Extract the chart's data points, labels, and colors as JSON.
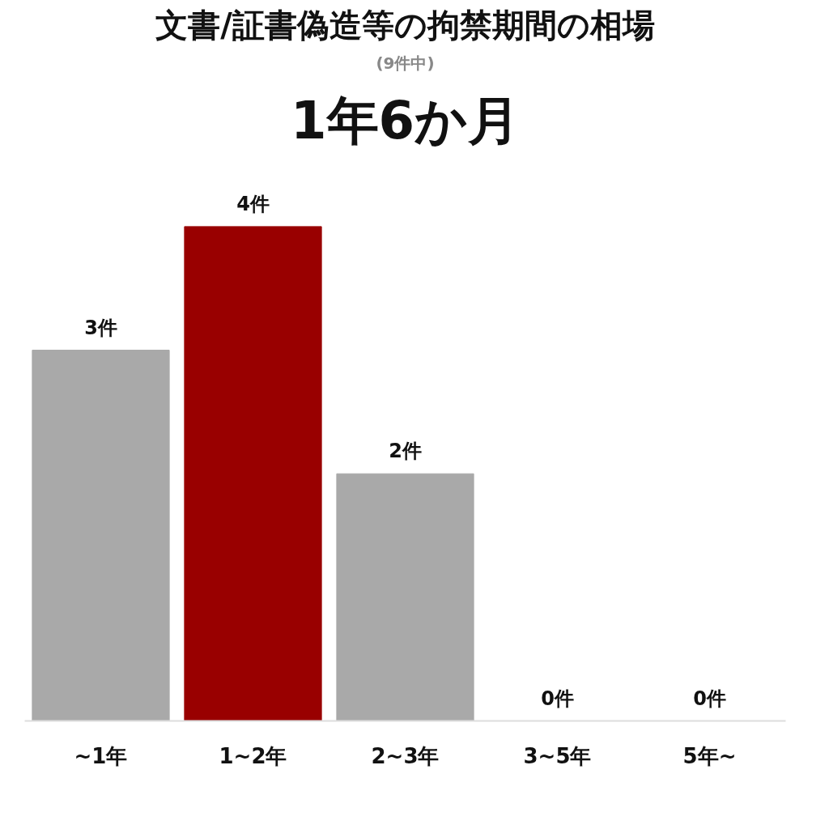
{
  "chart_data": {
    "type": "bar",
    "title": "文書/証書偽造等の拘禁期間の相場",
    "subtitle": "(9件中)",
    "annotations": [
      "1年6か月"
    ],
    "categories": [
      "~1年",
      "1~2年",
      "2~3年",
      "3~5年",
      "5年~"
    ],
    "values": [
      3,
      4,
      2,
      0,
      0
    ],
    "colors": [
      "#a9a9a9",
      "#990000",
      "#a9a9a9",
      "#a9a9a9",
      "#a9a9a9"
    ],
    "value_labels": [
      "3件",
      "4件",
      "2件",
      "0件",
      "0件"
    ],
    "grid": false
  }
}
